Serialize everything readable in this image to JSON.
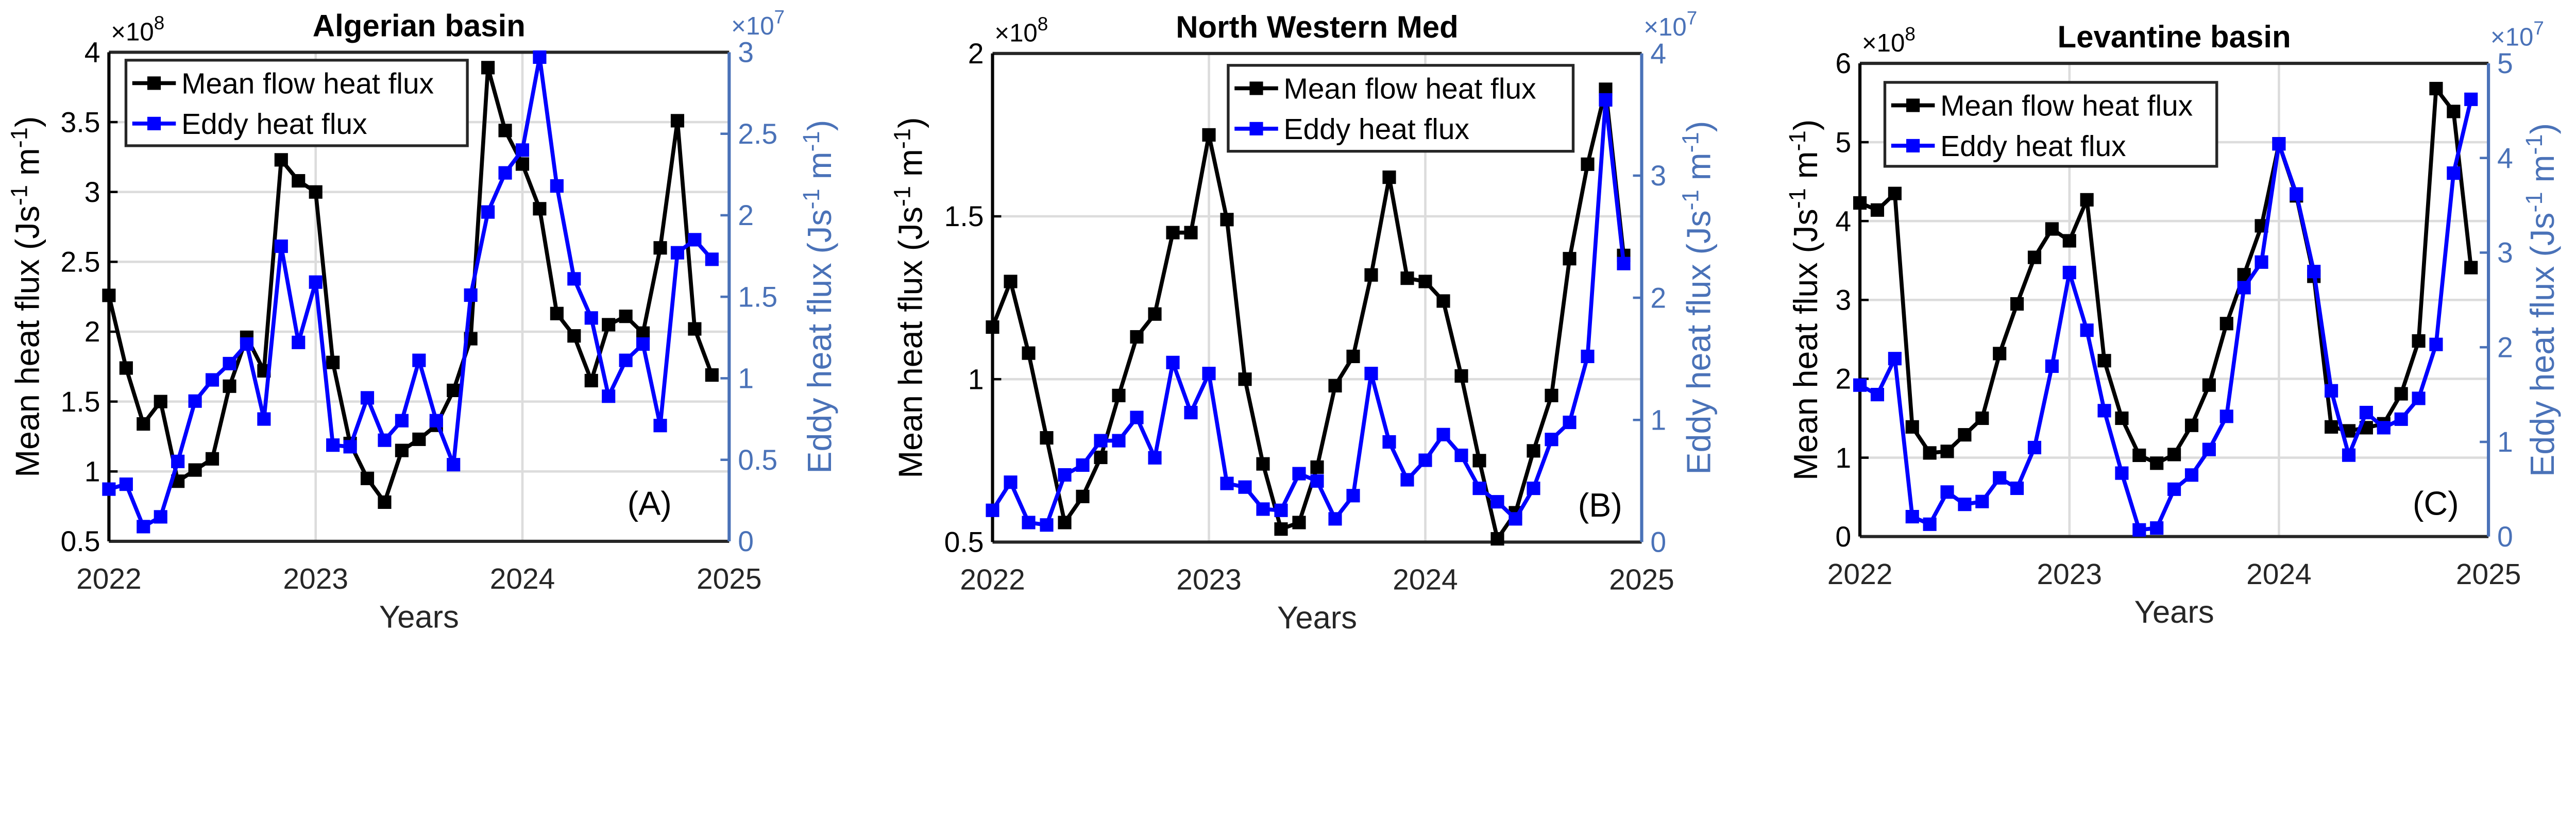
{
  "colors": {
    "mean": "#000000",
    "eddy": "#0000ff",
    "right_axis": "#4a72b8",
    "grid": "#dcdcdc"
  },
  "chart_data": [
    {
      "type": "line",
      "title": "Algerian basin",
      "panel_label": "(A)",
      "xlabel": "Years",
      "x_ticks": [
        "2022",
        "2023",
        "2024",
        "2025"
      ],
      "xlim": [
        2022,
        2025
      ],
      "x_start": 2022,
      "x_step_months": 1,
      "ylabel_left": {
        "main": "Mean heat flux (Js",
        "sup1": "-1",
        "mid": " m",
        "sup2": "-1",
        "end": ")"
      },
      "ylabel_right": {
        "main": "Eddy heat flux (Js",
        "sup1": "-1",
        "mid": " m",
        "sup2": "-1",
        "end": ")"
      },
      "left_exponent": {
        "base": "×10",
        "exp": "8"
      },
      "right_exponent": {
        "base": "×10",
        "exp": "7"
      },
      "ylim_left": [
        0.5,
        4
      ],
      "yticks_left": [
        "0.5",
        "1",
        "1.5",
        "2",
        "2.5",
        "3",
        "3.5",
        "4"
      ],
      "ylim_right": [
        0,
        3
      ],
      "yticks_right": [
        "0",
        "0.5",
        "1",
        "1.5",
        "2",
        "2.5",
        "3"
      ],
      "legend": {
        "placement": "top-left",
        "entries": [
          "Mean flow heat flux",
          "Eddy heat flux"
        ]
      },
      "series": [
        {
          "name": "Mean flow heat flux",
          "axis": "left",
          "values": [
            2.26,
            1.74,
            1.34,
            1.5,
            0.93,
            1.01,
            1.09,
            1.61,
            1.96,
            1.72,
            3.23,
            3.08,
            3.0,
            1.78,
            1.2,
            0.95,
            0.78,
            1.15,
            1.23,
            1.33,
            1.58,
            1.95,
            3.89,
            3.44,
            3.2,
            2.88,
            2.13,
            1.97,
            1.65,
            2.05,
            2.11,
            1.99,
            2.6,
            3.51,
            2.02,
            1.69
          ]
        },
        {
          "name": "Eddy heat flux",
          "axis": "right",
          "values": [
            0.32,
            0.35,
            0.09,
            0.15,
            0.49,
            0.86,
            0.99,
            1.09,
            1.21,
            0.75,
            1.81,
            1.22,
            1.59,
            0.59,
            0.58,
            0.88,
            0.62,
            0.74,
            1.11,
            0.74,
            0.47,
            1.51,
            2.02,
            2.26,
            2.4,
            2.97,
            2.18,
            1.61,
            1.37,
            0.89,
            1.11,
            1.21,
            0.71,
            1.77,
            1.85,
            1.73
          ]
        }
      ]
    },
    {
      "type": "line",
      "title": "North Western Med",
      "panel_label": "(B)",
      "xlabel": "Years",
      "x_ticks": [
        "2022",
        "2023",
        "2024",
        "2025"
      ],
      "xlim": [
        2022,
        2025
      ],
      "x_start": 2022,
      "x_step_months": 1,
      "ylabel_left": {
        "main": "Mean heat flux (Js",
        "sup1": "-1",
        "mid": " m",
        "sup2": "-1",
        "end": ")"
      },
      "ylabel_right": {
        "main": "Eddy heat flux (Js",
        "sup1": "-1",
        "mid": " m",
        "sup2": "-1",
        "end": ")"
      },
      "left_exponent": {
        "base": "×10",
        "exp": "8"
      },
      "right_exponent": {
        "base": "×10",
        "exp": "7"
      },
      "ylim_left": [
        0.5,
        2
      ],
      "yticks_left": [
        "0.5",
        "1",
        "1.5",
        "2"
      ],
      "ylim_right": [
        0,
        4
      ],
      "yticks_right": [
        "0",
        "1",
        "2",
        "3",
        "4"
      ],
      "legend": {
        "placement": "top-right",
        "entries": [
          "Mean flow heat flux",
          "Eddy heat flux"
        ]
      },
      "series": [
        {
          "name": "Mean flow heat flux",
          "axis": "left",
          "values": [
            1.16,
            1.3,
            1.08,
            0.82,
            0.56,
            0.64,
            0.76,
            0.95,
            1.13,
            1.2,
            1.45,
            1.45,
            1.75,
            1.49,
            1.0,
            0.74,
            0.54,
            0.56,
            0.73,
            0.98,
            1.07,
            1.32,
            1.62,
            1.31,
            1.3,
            1.24,
            1.01,
            0.75,
            0.51,
            0.59,
            0.78,
            0.95,
            1.37,
            1.66,
            1.89,
            1.38
          ]
        },
        {
          "name": "Eddy heat flux",
          "axis": "right",
          "values": [
            0.26,
            0.49,
            0.16,
            0.14,
            0.55,
            0.63,
            0.83,
            0.83,
            1.02,
            0.69,
            1.47,
            1.06,
            1.38,
            0.48,
            0.45,
            0.27,
            0.26,
            0.56,
            0.5,
            0.19,
            0.38,
            1.38,
            0.82,
            0.51,
            0.67,
            0.88,
            0.71,
            0.44,
            0.33,
            0.19,
            0.44,
            0.84,
            0.98,
            1.52,
            3.62,
            2.28
          ]
        }
      ]
    },
    {
      "type": "line",
      "title": "Levantine basin",
      "panel_label": "(C)",
      "xlabel": "Years",
      "x_ticks": [
        "2022",
        "2023",
        "2024",
        "2025"
      ],
      "xlim": [
        2022,
        2025
      ],
      "x_start": 2022,
      "x_step_months": 1,
      "ylabel_left": {
        "main": "Mean heat flux (Js",
        "sup1": "-1",
        "mid": " m",
        "sup2": "-1",
        "end": ")"
      },
      "ylabel_right": {
        "main": "Eddy heat flux (Js",
        "sup1": "-1",
        "mid": " m",
        "sup2": "-1",
        "end": ")"
      },
      "left_exponent": {
        "base": "×10",
        "exp": "8"
      },
      "right_exponent": {
        "base": "×10",
        "exp": "7"
      },
      "ylim_left": [
        0,
        6
      ],
      "yticks_left": [
        "0",
        "1",
        "2",
        "3",
        "4",
        "5",
        "6"
      ],
      "ylim_right": [
        0,
        5
      ],
      "yticks_right": [
        "0",
        "1",
        "2",
        "3",
        "4",
        "5"
      ],
      "legend": {
        "placement": "top-left",
        "entries": [
          "Mean flow heat flux",
          "Eddy heat flux"
        ]
      },
      "series": [
        {
          "name": "Mean flow heat flux",
          "axis": "left",
          "values": [
            4.23,
            4.14,
            4.35,
            1.39,
            1.06,
            1.08,
            1.29,
            1.5,
            2.32,
            2.95,
            3.54,
            3.9,
            3.75,
            4.27,
            2.23,
            1.5,
            1.03,
            0.93,
            1.04,
            1.41,
            1.92,
            2.7,
            3.32,
            3.94,
            4.98,
            4.32,
            3.3,
            1.39,
            1.34,
            1.38,
            1.43,
            1.81,
            2.48,
            5.68,
            5.39,
            3.41
          ]
        },
        {
          "name": "Eddy heat flux",
          "axis": "right",
          "values": [
            1.6,
            1.5,
            1.88,
            0.21,
            0.13,
            0.47,
            0.34,
            0.37,
            0.62,
            0.51,
            0.94,
            1.8,
            2.79,
            2.18,
            1.33,
            0.67,
            0.07,
            0.09,
            0.5,
            0.65,
            0.92,
            1.27,
            2.63,
            2.9,
            4.15,
            3.62,
            2.8,
            1.54,
            0.86,
            1.31,
            1.15,
            1.24,
            1.46,
            2.03,
            3.84,
            4.62
          ]
        }
      ]
    }
  ]
}
